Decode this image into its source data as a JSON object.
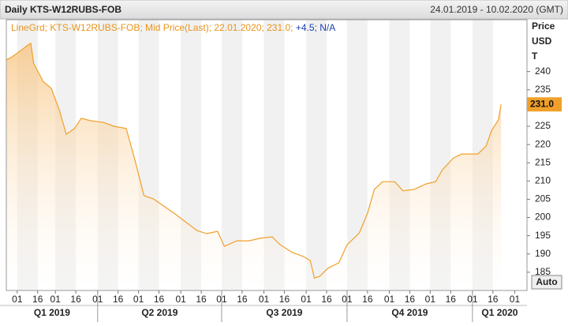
{
  "chart_data": {
    "type": "line",
    "title": "Daily KTS-W12RUBS-FOB",
    "date_range": "24.01.2019 - 10.02.2020 (GMT)",
    "legend_text": "LineGrd; KTS-W12RUBS-FOB; Mid Price(Last); 22.01.2020; 231.0;",
    "legend_change": "+4.5",
    "legend_extra": "N/A",
    "ylabel": [
      "Price",
      "USD",
      "T"
    ],
    "auto_button": "Auto",
    "series": [
      {
        "name": "KTS-W12RUBS-FOB",
        "color": "#f0a02a",
        "last_label": "231.0",
        "x": [
          "2019-01-24",
          "2019-01-28",
          "2019-02-03",
          "2019-02-09",
          "2019-02-11",
          "2019-02-13",
          "2019-02-20",
          "2019-02-26",
          "2019-03-04",
          "2019-03-09",
          "2019-03-15",
          "2019-03-20",
          "2019-03-27",
          "2019-04-05",
          "2019-04-13",
          "2019-04-22",
          "2019-04-28",
          "2019-05-05",
          "2019-05-12",
          "2019-05-27",
          "2019-06-13",
          "2019-06-20",
          "2019-06-28",
          "2019-07-03",
          "2019-07-12",
          "2019-07-21",
          "2019-07-29",
          "2019-08-07",
          "2019-08-13",
          "2019-08-22",
          "2019-08-30",
          "2019-09-04",
          "2019-09-07",
          "2019-09-11",
          "2019-09-17",
          "2019-09-25",
          "2019-10-01",
          "2019-10-10",
          "2019-10-16",
          "2019-10-21",
          "2019-10-27",
          "2019-11-05",
          "2019-11-11",
          "2019-11-19",
          "2019-11-28",
          "2019-12-05",
          "2019-12-10",
          "2019-12-18",
          "2019-12-24",
          "2020-01-05",
          "2020-01-11",
          "2020-01-15",
          "2020-01-20",
          "2020-01-22"
        ],
        "values": [
          243.2,
          244,
          245.6,
          247.3,
          247.7,
          242.3,
          237.3,
          235.4,
          229.3,
          222.8,
          224.4,
          227.2,
          226.5,
          226.1,
          225,
          224.4,
          216.3,
          206,
          205.1,
          201.2,
          196.4,
          195.6,
          196.2,
          192.1,
          193.6,
          193.6,
          194.3,
          194.7,
          192.5,
          190.4,
          189.3,
          188.2,
          183.4,
          183.9,
          186.1,
          187.6,
          192.5,
          195.8,
          201.2,
          207.7,
          209.8,
          209.8,
          207.3,
          207.7,
          209.2,
          209.8,
          213.1,
          216.3,
          217.4,
          217.4,
          219.6,
          223.9,
          226.7,
          231
        ]
      }
    ],
    "xlim": [
      "2019-01-24",
      "2020-02-10"
    ],
    "xticks": [
      {
        "value": "2019-02-01",
        "label": "01"
      },
      {
        "value": "2019-02-16",
        "label": "16"
      },
      {
        "value": "2019-03-01",
        "label": "01"
      },
      {
        "value": "2019-03-16",
        "label": "16"
      },
      {
        "value": "2019-04-01",
        "label": "01"
      },
      {
        "value": "2019-04-16",
        "label": "16"
      },
      {
        "value": "2019-05-01",
        "label": "01"
      },
      {
        "value": "2019-05-16",
        "label": "16"
      },
      {
        "value": "2019-06-01",
        "label": "01"
      },
      {
        "value": "2019-06-16",
        "label": "16"
      },
      {
        "value": "2019-07-01",
        "label": "01"
      },
      {
        "value": "2019-07-16",
        "label": "16"
      },
      {
        "value": "2019-08-01",
        "label": "01"
      },
      {
        "value": "2019-08-16",
        "label": "16"
      },
      {
        "value": "2019-09-01",
        "label": "01"
      },
      {
        "value": "2019-09-16",
        "label": "16"
      },
      {
        "value": "2019-10-01",
        "label": "01"
      },
      {
        "value": "2019-10-16",
        "label": "16"
      },
      {
        "value": "2019-11-01",
        "label": "01"
      },
      {
        "value": "2019-11-16",
        "label": "16"
      },
      {
        "value": "2019-12-01",
        "label": "01"
      },
      {
        "value": "2019-12-16",
        "label": "16"
      },
      {
        "value": "2020-01-01",
        "label": "01"
      },
      {
        "value": "2020-01-16",
        "label": "16"
      },
      {
        "value": "2020-02-01",
        "label": "01"
      }
    ],
    "quarters": [
      {
        "value": "2019-01-01",
        "label": "Q1 2019"
      },
      {
        "value": "2019-04-01",
        "label": "Q2 2019"
      },
      {
        "value": "2019-07-01",
        "label": "Q3 2019"
      },
      {
        "value": "2019-10-01",
        "label": "Q4 2019"
      },
      {
        "value": "2020-01-01",
        "label": "Q1 2020"
      }
    ],
    "ylim": [
      180,
      254.2
    ],
    "yticks": [
      185,
      190,
      195,
      200,
      205,
      210,
      215,
      220,
      225,
      230,
      235,
      240
    ],
    "grid": false
  }
}
